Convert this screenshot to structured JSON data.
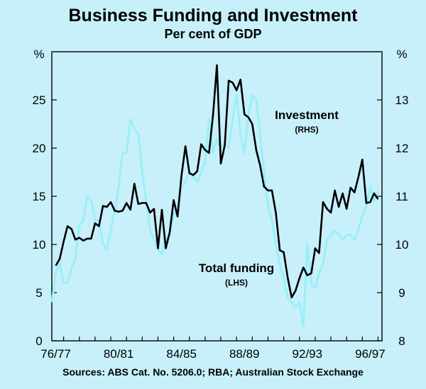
{
  "chart_data": {
    "type": "line",
    "title": "Business Funding and Investment",
    "subtitle": "Per cent of GDP",
    "left_axis": {
      "unit": "%",
      "range": [
        0,
        30
      ],
      "ticks": [
        0,
        5,
        10,
        15,
        20,
        25
      ]
    },
    "right_axis": {
      "unit": "%",
      "range": [
        8,
        14
      ],
      "ticks": [
        8,
        9,
        10,
        11,
        12,
        13
      ]
    },
    "x_labels": [
      "76/77",
      "80/81",
      "84/85",
      "88/89",
      "92/93",
      "96/97"
    ],
    "x_range": [
      1976.25,
      1997.25
    ],
    "series": [
      {
        "name": "Total funding",
        "axis": "left",
        "label": "Total funding",
        "sublabel": "(LHS)",
        "color": "#000000",
        "points": [
          [
            1976.5,
            7.8
          ],
          [
            1976.75,
            8.5
          ],
          [
            1977.0,
            10.3
          ],
          [
            1977.25,
            11.9
          ],
          [
            1977.5,
            11.6
          ],
          [
            1977.75,
            10.5
          ],
          [
            1978.0,
            10.7
          ],
          [
            1978.25,
            10.4
          ],
          [
            1978.5,
            10.6
          ],
          [
            1978.75,
            10.6
          ],
          [
            1979.0,
            12.2
          ],
          [
            1979.25,
            11.9
          ],
          [
            1979.5,
            14.0
          ],
          [
            1979.75,
            13.9
          ],
          [
            1980.0,
            14.4
          ],
          [
            1980.25,
            13.5
          ],
          [
            1980.5,
            13.4
          ],
          [
            1980.75,
            13.5
          ],
          [
            1981.0,
            14.3
          ],
          [
            1981.25,
            13.6
          ],
          [
            1981.5,
            16.3
          ],
          [
            1981.75,
            14.2
          ],
          [
            1982.0,
            14.3
          ],
          [
            1982.25,
            14.3
          ],
          [
            1982.5,
            13.3
          ],
          [
            1982.75,
            13.7
          ],
          [
            1983.0,
            9.6
          ],
          [
            1983.25,
            13.6
          ],
          [
            1983.5,
            9.6
          ],
          [
            1983.75,
            11.3
          ],
          [
            1984.0,
            14.6
          ],
          [
            1984.25,
            12.9
          ],
          [
            1984.5,
            17.2
          ],
          [
            1984.75,
            20.2
          ],
          [
            1985.0,
            17.4
          ],
          [
            1985.25,
            17.2
          ],
          [
            1985.5,
            17.6
          ],
          [
            1985.75,
            20.4
          ],
          [
            1986.0,
            19.8
          ],
          [
            1986.25,
            19.5
          ],
          [
            1986.5,
            23.4
          ],
          [
            1986.75,
            28.6
          ],
          [
            1987.0,
            18.4
          ],
          [
            1987.25,
            20.3
          ],
          [
            1987.5,
            27.0
          ],
          [
            1987.75,
            26.8
          ],
          [
            1988.0,
            26.0
          ],
          [
            1988.25,
            27.1
          ],
          [
            1988.5,
            23.5
          ],
          [
            1988.75,
            23.2
          ],
          [
            1989.0,
            22.5
          ],
          [
            1989.25,
            19.8
          ],
          [
            1989.5,
            18.2
          ],
          [
            1989.75,
            16.0
          ],
          [
            1990.0,
            15.6
          ],
          [
            1990.25,
            15.6
          ],
          [
            1990.5,
            13.3
          ],
          [
            1990.75,
            9.4
          ],
          [
            1991.0,
            9.2
          ],
          [
            1991.25,
            6.6
          ],
          [
            1991.5,
            4.5
          ],
          [
            1991.75,
            5.2
          ],
          [
            1992.0,
            6.5
          ],
          [
            1992.25,
            7.6
          ],
          [
            1992.5,
            6.8
          ],
          [
            1992.75,
            7.0
          ],
          [
            1993.0,
            9.6
          ],
          [
            1993.25,
            9.1
          ],
          [
            1993.5,
            14.4
          ],
          [
            1993.75,
            13.7
          ],
          [
            1994.0,
            13.3
          ],
          [
            1994.25,
            15.6
          ],
          [
            1994.5,
            13.9
          ],
          [
            1994.75,
            15.3
          ],
          [
            1995.0,
            13.7
          ],
          [
            1995.25,
            15.9
          ],
          [
            1995.5,
            15.4
          ],
          [
            1995.75,
            17.0
          ],
          [
            1996.0,
            18.8
          ],
          [
            1996.25,
            14.3
          ],
          [
            1996.5,
            14.4
          ],
          [
            1996.75,
            15.3
          ],
          [
            1997.0,
            14.7
          ]
        ]
      },
      {
        "name": "Investment",
        "axis": "right",
        "label": "Investment",
        "sublabel": "(RHS)",
        "color": "#99f0f8",
        "points": [
          [
            1976.25,
            8.8
          ],
          [
            1976.5,
            9.4
          ],
          [
            1976.75,
            9.6
          ],
          [
            1977.0,
            9.2
          ],
          [
            1977.25,
            9.2
          ],
          [
            1977.5,
            9.5
          ],
          [
            1977.75,
            9.7
          ],
          [
            1978.0,
            10.4
          ],
          [
            1978.25,
            10.5
          ],
          [
            1978.5,
            11.0
          ],
          [
            1978.75,
            10.9
          ],
          [
            1979.0,
            10.5
          ],
          [
            1979.25,
            10.5
          ],
          [
            1979.5,
            10.0
          ],
          [
            1979.75,
            9.9
          ],
          [
            1980.0,
            10.3
          ],
          [
            1980.25,
            10.7
          ],
          [
            1980.5,
            11.2
          ],
          [
            1980.75,
            11.9
          ],
          [
            1981.0,
            11.9
          ],
          [
            1981.25,
            12.6
          ],
          [
            1981.5,
            12.4
          ],
          [
            1981.75,
            12.3
          ],
          [
            1982.0,
            11.5
          ],
          [
            1982.25,
            10.9
          ],
          [
            1982.5,
            10.3
          ],
          [
            1982.75,
            10.1
          ],
          [
            1983.0,
            9.9
          ],
          [
            1983.25,
            9.8
          ],
          [
            1983.5,
            10.1
          ],
          [
            1983.75,
            10.2
          ],
          [
            1984.0,
            10.6
          ],
          [
            1984.25,
            10.8
          ],
          [
            1984.5,
            11.2
          ],
          [
            1984.75,
            11.3
          ],
          [
            1985.0,
            11.5
          ],
          [
            1985.25,
            11.4
          ],
          [
            1985.5,
            11.3
          ],
          [
            1985.75,
            11.5
          ],
          [
            1986.0,
            11.7
          ],
          [
            1986.25,
            12.6
          ],
          [
            1986.5,
            11.9
          ],
          [
            1986.75,
            12.2
          ],
          [
            1987.0,
            12.0
          ],
          [
            1987.25,
            12.1
          ],
          [
            1987.5,
            12.0
          ],
          [
            1987.75,
            12.6
          ],
          [
            1988.0,
            13.1
          ],
          [
            1988.25,
            12.3
          ],
          [
            1988.5,
            11.9
          ],
          [
            1988.75,
            12.7
          ],
          [
            1989.0,
            13.1
          ],
          [
            1989.25,
            13.0
          ],
          [
            1989.5,
            12.3
          ],
          [
            1989.75,
            11.5
          ],
          [
            1990.0,
            10.8
          ],
          [
            1990.25,
            10.5
          ],
          [
            1990.5,
            10.0
          ],
          [
            1990.75,
            9.6
          ],
          [
            1991.0,
            9.3
          ],
          [
            1991.25,
            8.9
          ],
          [
            1991.5,
            8.8
          ],
          [
            1991.75,
            8.7
          ],
          [
            1992.0,
            8.8
          ],
          [
            1992.25,
            8.3
          ],
          [
            1992.5,
            10.0
          ],
          [
            1992.75,
            9.2
          ],
          [
            1993.0,
            9.1
          ],
          [
            1993.25,
            9.4
          ],
          [
            1993.5,
            9.6
          ],
          [
            1993.75,
            10.1
          ],
          [
            1994.0,
            10.2
          ],
          [
            1994.25,
            10.3
          ],
          [
            1994.5,
            10.2
          ],
          [
            1994.75,
            10.1
          ],
          [
            1995.0,
            10.2
          ],
          [
            1995.25,
            10.2
          ],
          [
            1995.5,
            10.1
          ],
          [
            1995.75,
            10.3
          ],
          [
            1996.0,
            10.6
          ],
          [
            1996.25,
            10.8
          ],
          [
            1996.5,
            11.2
          ],
          [
            1996.75,
            10.9
          ],
          [
            1997.0,
            11.1
          ]
        ]
      }
    ]
  },
  "source": "Sources: ABS Cat. No. 5206.0; RBA; Australian Stock Exchange",
  "colors": {
    "background": "#c8f0fa",
    "funding_line": "#000000",
    "investment_line": "#99f0f8"
  }
}
